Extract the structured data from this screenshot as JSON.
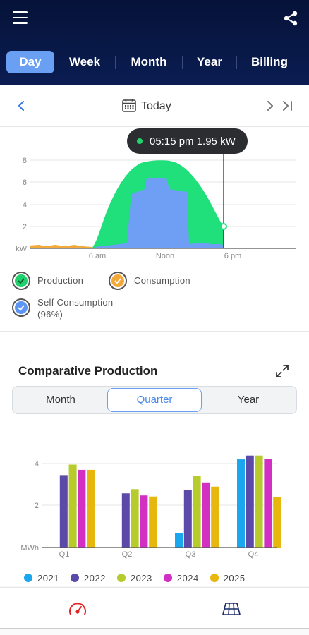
{
  "header": {
    "menu_icon": "hamburger-icon",
    "share_icon": "share-icon"
  },
  "tabs": [
    {
      "label": "Day",
      "active": true
    },
    {
      "label": "Week",
      "active": false
    },
    {
      "label": "Month",
      "active": false
    },
    {
      "label": "Year",
      "active": false
    },
    {
      "label": "Billing",
      "active": false
    }
  ],
  "datebar": {
    "label": "Today",
    "prev_icon": "chevron-left-icon",
    "calendar_icon": "calendar-icon",
    "next_icon": "chevron-right-icon",
    "last_icon": "skip-to-end-icon"
  },
  "tooltip": {
    "text": "05:15 pm 1.95 kW",
    "dot_color": "#22d46b"
  },
  "day_chart": {
    "unit": "kW",
    "y_ticks": [
      "8",
      "6",
      "4",
      "2"
    ],
    "x_ticks": [
      "6 am",
      "Noon",
      "6 pm"
    ],
    "colors": {
      "production": "#1fe07a",
      "self_consumption": "#6f9ef5",
      "consumption": "#f3a93a"
    }
  },
  "legend": [
    {
      "label": "Production",
      "color": "#1fd06d"
    },
    {
      "label": "Consumption",
      "color": "#f3a93a"
    },
    {
      "label": "Self Consumption",
      "sub": "(96%)",
      "color": "#5d95f2"
    }
  ],
  "comparative": {
    "title": "Comparative Production",
    "expand_icon": "expand-icon",
    "segments": [
      {
        "label": "Month",
        "active": false
      },
      {
        "label": "Quarter",
        "active": true
      },
      {
        "label": "Year",
        "active": false
      }
    ]
  },
  "chart_data": {
    "type": "bar",
    "categories": [
      "Q1",
      "Q2",
      "Q3",
      "Q4"
    ],
    "ylabel": "MWh",
    "y_ticks": [
      "4",
      "2"
    ],
    "ylim": [
      0,
      4.8
    ],
    "series": [
      {
        "name": "2021",
        "color": "#1aa7ee",
        "values": [
          0,
          0,
          0.7,
          4.2
        ]
      },
      {
        "name": "2022",
        "color": "#5b4aa8",
        "values": [
          3.45,
          2.58,
          2.75,
          4.38
        ]
      },
      {
        "name": "2023",
        "color": "#b7cc2c",
        "values": [
          3.95,
          2.78,
          3.42,
          4.38
        ]
      },
      {
        "name": "2024",
        "color": "#d22fc3",
        "values": [
          3.7,
          2.48,
          3.1,
          4.22
        ]
      },
      {
        "name": "2025",
        "color": "#e8b70d",
        "values": [
          3.7,
          2.43,
          2.9,
          2.4
        ]
      }
    ]
  },
  "bottomnav": {
    "items": [
      {
        "icon": "gauge-icon",
        "color": "#e02424"
      },
      {
        "icon": "solar-panel-icon",
        "color": "#1a2a66"
      }
    ]
  }
}
